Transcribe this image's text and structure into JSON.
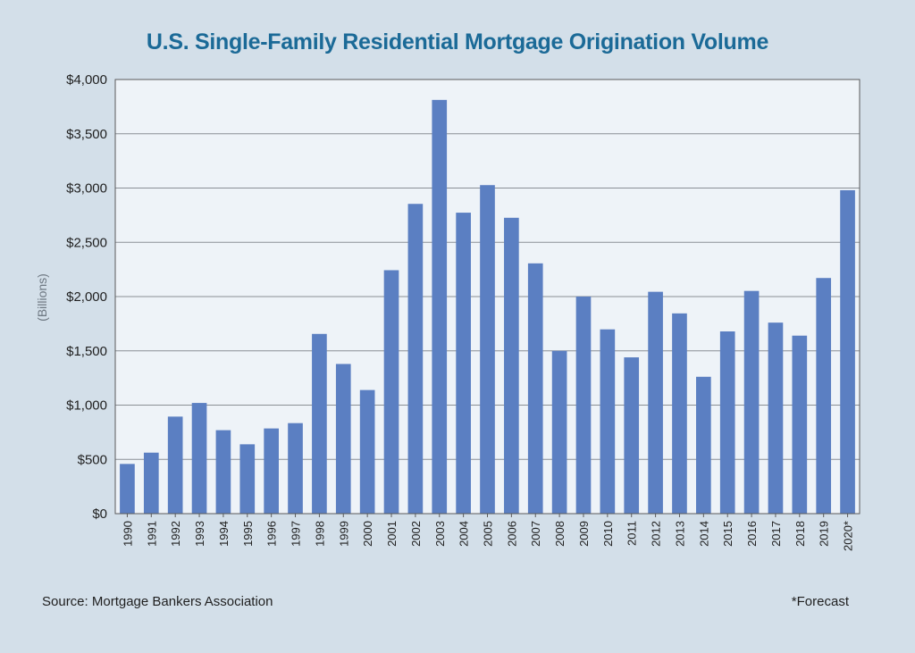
{
  "chart_data": {
    "type": "bar",
    "title": "U.S. Single-Family Residential Mortgage Origination Volume",
    "ylabel": "(Billions)",
    "xlabel": "",
    "ylim": [
      0,
      4000
    ],
    "y_ticks": [
      "$0",
      "$500",
      "$1,000",
      "$1,500",
      "$2,000",
      "$2,500",
      "$3,000",
      "$3,500",
      "$4,000"
    ],
    "grid": true,
    "bar_color": "#5b7fc2",
    "categories": [
      "1990",
      "1991",
      "1992",
      "1993",
      "1994",
      "1995",
      "1996",
      "1997",
      "1998",
      "1999",
      "2000",
      "2001",
      "2002",
      "2003",
      "2004",
      "2005",
      "2006",
      "2007",
      "2008",
      "2009",
      "2010",
      "2011",
      "2012",
      "2013",
      "2014",
      "2015",
      "2016",
      "2017",
      "2018",
      "2019",
      "2020*"
    ],
    "values": [
      458,
      562,
      894,
      1020,
      769,
      639,
      785,
      834,
      1656,
      1379,
      1139,
      2243,
      2854,
      3812,
      2773,
      3027,
      2726,
      2306,
      1500,
      2000,
      1698,
      1440,
      2044,
      1845,
      1261,
      1679,
      2052,
      1760,
      1640,
      2171,
      2980
    ]
  },
  "footer": {
    "source_prefix": "Source:",
    "source_name": "Mortgage Bankers Association",
    "note": "*Forecast"
  }
}
